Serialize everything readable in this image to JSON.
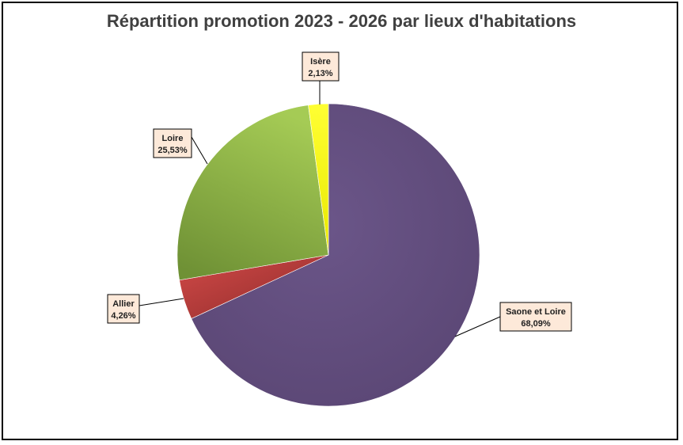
{
  "chart_data": {
    "type": "pie",
    "title": "Répartition promotion 2023 - 2026 par lieux d'habitations",
    "slices": [
      {
        "name": "Saone et Loire",
        "value": 68.09,
        "label_value": "68,09%",
        "color": "#614c7c"
      },
      {
        "name": "Allier",
        "value": 4.26,
        "label_value": "4,26%",
        "color": "#c0393a"
      },
      {
        "name": "Loire",
        "value": 25.53,
        "label_value": "25,53%",
        "color": "#8db646"
      },
      {
        "name": "Isère",
        "value": 2.13,
        "label_value": "2,13%",
        "color": "#ffff00"
      }
    ],
    "legend": "none",
    "start": "12 o'clock",
    "direction": "clockwise"
  }
}
